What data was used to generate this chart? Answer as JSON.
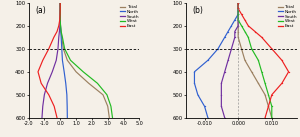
{
  "pressure_levels": [
    100,
    125,
    150,
    175,
    200,
    225,
    250,
    300,
    350,
    400,
    450,
    500,
    550,
    600
  ],
  "panel_a": {
    "Total": [
      0.0,
      0.0,
      0.0,
      0.0,
      0.02,
      0.05,
      0.1,
      0.2,
      0.45,
      1.0,
      1.8,
      2.7,
      3.0,
      3.1
    ],
    "North": [
      0.0,
      0.0,
      0.0,
      0.0,
      0.02,
      0.04,
      0.06,
      0.1,
      0.14,
      0.25,
      0.35,
      0.42,
      0.44,
      0.45
    ],
    "South": [
      0.0,
      0.0,
      0.0,
      0.0,
      -0.02,
      -0.05,
      -0.09,
      -0.14,
      -0.25,
      -0.5,
      -0.8,
      -1.0,
      -1.1,
      -1.15
    ],
    "West": [
      0.0,
      0.0,
      0.0,
      0.0,
      0.02,
      0.06,
      0.14,
      0.28,
      0.65,
      1.45,
      2.35,
      2.95,
      3.2,
      3.3
    ],
    "East": [
      0.0,
      0.0,
      -0.01,
      -0.03,
      -0.09,
      -0.2,
      -0.4,
      -0.72,
      -1.1,
      -1.4,
      -1.2,
      -0.72,
      -0.38,
      -0.2
    ]
  },
  "panel_b": {
    "Total": [
      0.0,
      0.0,
      0.0,
      0.0,
      0.0,
      0.0,
      0.0,
      0.001,
      0.002,
      0.004,
      0.006,
      0.008,
      0.009,
      0.01
    ],
    "North": [
      0.0,
      0.0,
      0.0,
      -0.001,
      -0.002,
      -0.003,
      -0.004,
      -0.006,
      -0.009,
      -0.013,
      -0.013,
      -0.012,
      -0.01,
      -0.009
    ],
    "South": [
      0.0,
      0.0,
      0.0,
      0.0,
      0.0,
      -0.001,
      -0.001,
      -0.002,
      -0.003,
      -0.004,
      -0.005,
      -0.005,
      -0.005,
      -0.004
    ],
    "West": [
      0.0,
      0.0,
      0.0,
      0.0,
      0.001,
      0.002,
      0.003,
      0.004,
      0.006,
      0.007,
      0.008,
      0.009,
      0.01,
      0.01
    ],
    "East": [
      0.0,
      0.0,
      0.001,
      0.002,
      0.003,
      0.005,
      0.007,
      0.01,
      0.013,
      0.015,
      0.013,
      0.01,
      0.009,
      0.008
    ]
  },
  "colors": {
    "Total": "#9B8060",
    "North": "#3060D0",
    "South": "#7030A0",
    "West": "#22BB22",
    "East": "#EE2020"
  },
  "series_order": [
    "Total",
    "North",
    "South",
    "West",
    "East"
  ],
  "ylim": [
    600,
    100
  ],
  "yticks": [
    100,
    200,
    300,
    400,
    500,
    600
  ],
  "panel_a_xlim": [
    -2.0,
    5.0
  ],
  "panel_a_xticks": [
    -2.0,
    -1.0,
    0.0,
    1.0,
    2.0,
    3.0,
    4.0,
    5.0
  ],
  "panel_b_xlim": [
    -0.0155,
    0.0175
  ],
  "panel_b_xticks": [
    -0.01,
    0.0,
    0.01
  ],
  "dashed_pressure": 300,
  "label_a": "(a)",
  "label_b": "(b)",
  "bg_color": "#F5F0E8"
}
